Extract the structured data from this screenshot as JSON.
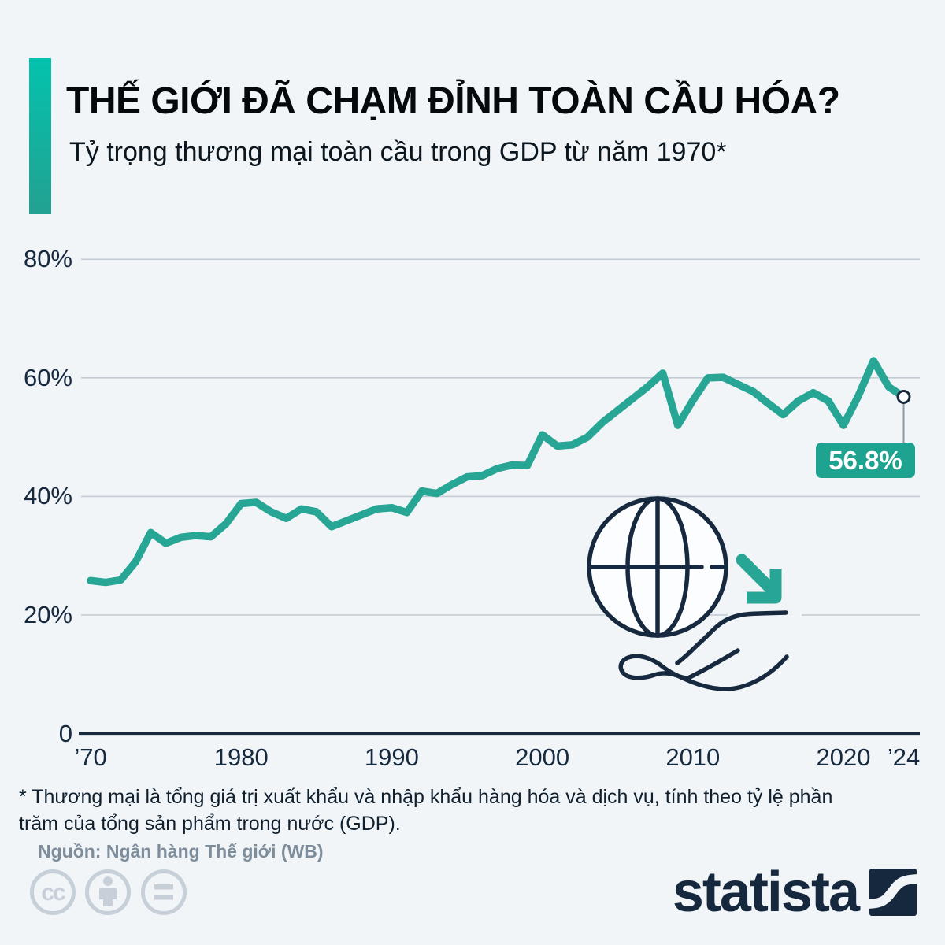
{
  "header": {
    "title": "THẾ GIỚI ĐÃ CHẠM ĐỈNH TOÀN CẦU HÓA?",
    "subtitle": "Tỷ trọng thương mại toàn cầu trong GDP từ năm 1970*",
    "accent_color": "#03c3ae"
  },
  "chart_data": {
    "type": "line",
    "title": "THẾ GIỚI ĐÃ CHẠM ĐỈNH TOÀN CẦU HÓA?",
    "subtitle": "Tỷ trọng thương mại toàn cầu trong GDP từ năm 1970*",
    "series_name": "Tỷ trọng thương mại toàn cầu trong GDP (%)",
    "unit": "%",
    "grid": true,
    "legend": "none",
    "line_color": "#27a595",
    "ylim": [
      0,
      80
    ],
    "x_range": [
      1970,
      2024
    ],
    "x": [
      1970,
      1971,
      1972,
      1973,
      1974,
      1975,
      1976,
      1977,
      1978,
      1979,
      1980,
      1981,
      1982,
      1983,
      1984,
      1985,
      1986,
      1987,
      1988,
      1989,
      1990,
      1991,
      1992,
      1993,
      1994,
      1995,
      1996,
      1997,
      1998,
      1999,
      2000,
      2001,
      2002,
      2003,
      2004,
      2005,
      2006,
      2007,
      2008,
      2009,
      2010,
      2011,
      2012,
      2013,
      2014,
      2015,
      2016,
      2017,
      2018,
      2019,
      2020,
      2021,
      2022,
      2023,
      2024
    ],
    "values": [
      25.8,
      25.5,
      25.9,
      29.0,
      33.9,
      32.1,
      33.1,
      33.4,
      33.2,
      35.4,
      38.8,
      39.0,
      37.4,
      36.3,
      37.9,
      37.4,
      34.9,
      35.9,
      36.9,
      37.9,
      38.1,
      37.3,
      40.9,
      40.5,
      42.0,
      43.3,
      43.5,
      44.7,
      45.3,
      45.2,
      50.4,
      48.5,
      48.7,
      50.0,
      52.5,
      54.5,
      56.5,
      58.5,
      60.8,
      52.0,
      56.2,
      60.0,
      60.1,
      58.9,
      57.7,
      55.7,
      53.8,
      56.1,
      57.5,
      56.1,
      52.0,
      57.0,
      62.9,
      58.5,
      56.8
    ],
    "end_label": "56.8%",
    "y_ticks": [
      {
        "value": 80,
        "label": "80%"
      },
      {
        "value": 60,
        "label": "60%"
      },
      {
        "value": 40,
        "label": "40%"
      },
      {
        "value": 20,
        "label": "20%"
      },
      {
        "value": 0,
        "label": "0"
      }
    ],
    "x_ticks": [
      {
        "year": 1970,
        "label": "’70"
      },
      {
        "year": 1980,
        "label": "1980"
      },
      {
        "year": 1990,
        "label": "1990"
      },
      {
        "year": 2000,
        "label": "2000"
      },
      {
        "year": 2010,
        "label": "2010"
      },
      {
        "year": 2020,
        "label": "2020"
      },
      {
        "year": 2024,
        "label": "’24"
      }
    ],
    "icons": [
      "globe-in-hand-icon",
      "down-right-arrow-icon"
    ]
  },
  "footer": {
    "footnote": "* Thương mại là tổng giá trị xuất khẩu và nhập khẩu hàng hóa và dịch vụ, tính theo tỷ lệ phần trăm của tổng sản phẩm trong nước (GDP).",
    "source": "Nguồn: Ngân hàng Thế giới (WB)",
    "license_icons": [
      "cc-icon",
      "cc-by-icon",
      "cc-nd-icon"
    ],
    "brand": "statista"
  }
}
